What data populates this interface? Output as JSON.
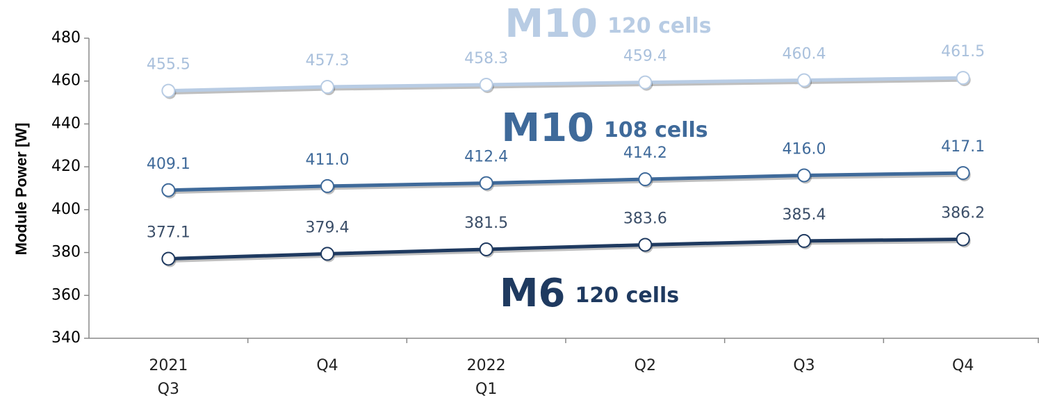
{
  "chart_data": {
    "type": "line",
    "y_label": "Module Power [W]",
    "categories": [
      [
        "2021",
        "Q3"
      ],
      [
        "Q4"
      ],
      [
        "2022",
        "Q1"
      ],
      [
        "Q2"
      ],
      [
        "Q3"
      ],
      [
        "Q4"
      ]
    ],
    "ylim": [
      340,
      480
    ],
    "yticks": [
      340,
      360,
      380,
      400,
      420,
      440,
      460,
      480
    ],
    "series": [
      {
        "name": "M10",
        "cells": "120 cells",
        "color": "#b8cce4",
        "label_color": "#a9c0dc",
        "values": [
          455.5,
          457.3,
          458.3,
          459.4,
          460.4,
          461.5
        ],
        "value_labels": [
          "455.5",
          "457.3",
          "458.3",
          "459.4",
          "460.4",
          "461.5"
        ]
      },
      {
        "name": "M10",
        "cells": "108 cells",
        "color": "#3f6a9a",
        "label_color": "#3f6a9a",
        "values": [
          409.1,
          411.0,
          412.4,
          414.2,
          416.0,
          417.1
        ],
        "value_labels": [
          "409.1",
          "411.0",
          "412.4",
          "414.2",
          "416.0",
          "417.1"
        ]
      },
      {
        "name": "M6",
        "cells": "120 cells",
        "color": "#1f3a60",
        "label_color": "#3b4e68",
        "values": [
          377.1,
          379.4,
          381.5,
          383.6,
          385.4,
          386.2
        ],
        "value_labels": [
          "377.1",
          "379.4",
          "381.5",
          "383.6",
          "385.4",
          "386.2"
        ]
      }
    ]
  }
}
